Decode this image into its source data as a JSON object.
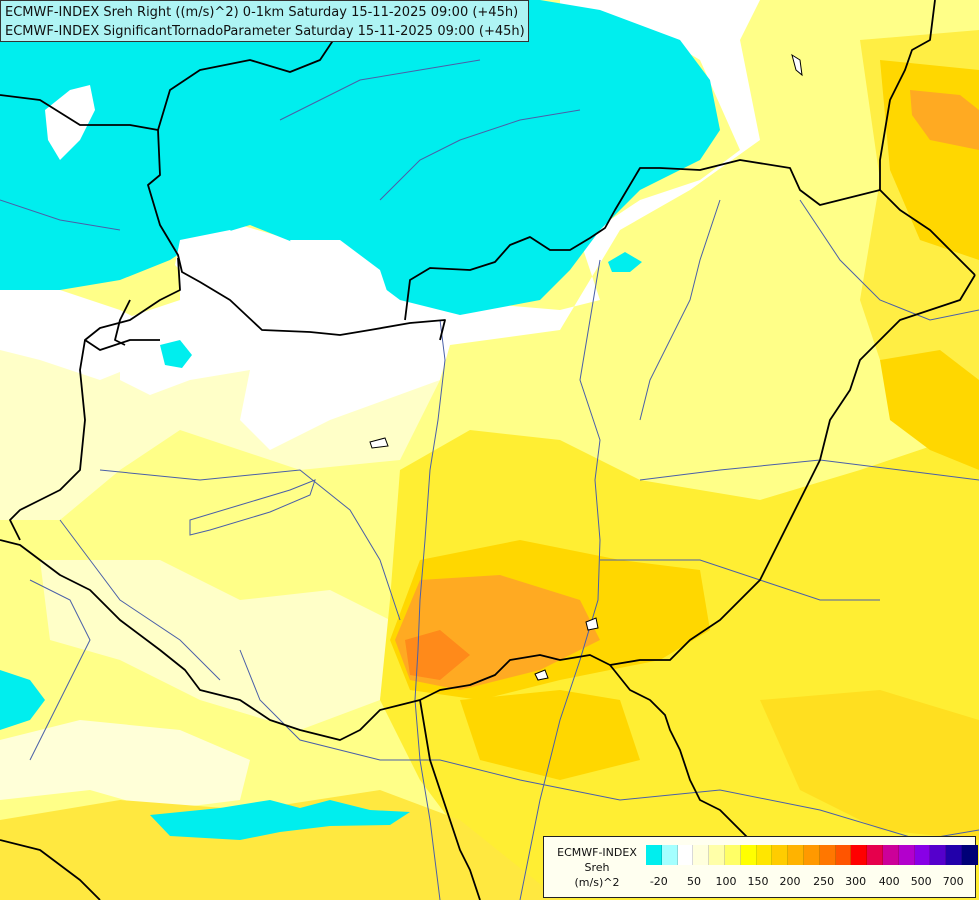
{
  "title": {
    "line1": "ECMWF-INDEX Sreh Right ((m/s)^2) 0-1km Saturday 15-11-2025 09:00 (+45h)",
    "line2": "ECMWF-INDEX SignificantTornadoParameter Saturday 15-11-2025 09:00 (+45h)"
  },
  "legend": {
    "source": "ECMWF-INDEX",
    "parameter": "Sreh",
    "unit": "(m/s)^2",
    "colors": [
      "#00eeee",
      "#a4ffff",
      "#ffffff",
      "#ffffdd",
      "#ffffa8",
      "#ffff66",
      "#ffff00",
      "#ffe600",
      "#ffcc00",
      "#ffb300",
      "#ff9900",
      "#ff7700",
      "#ff5500",
      "#ff0000",
      "#e6004c",
      "#cc0099",
      "#b300cc",
      "#8800e6",
      "#5500cc",
      "#2200aa",
      "#000077"
    ],
    "ticks": [
      "-20",
      "50",
      "100",
      "150",
      "200",
      "250",
      "300",
      "400",
      "500",
      "700"
    ]
  },
  "colors": {
    "cyan": "#00eeee",
    "white": "#ffffff",
    "pale_yellow": "#ffffc0",
    "light_yellow": "#ffff80",
    "yellow": "#ffee33",
    "gold": "#ffd700",
    "orange": "#ffaa22",
    "dark_orange": "#ff8a1a",
    "border": "#000000",
    "river": "#4a5fa8"
  }
}
